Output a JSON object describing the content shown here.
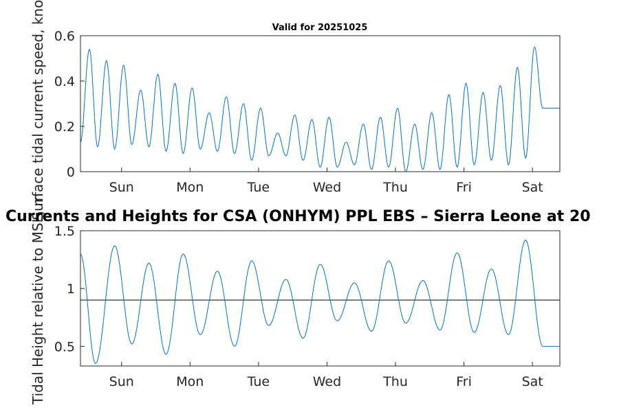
{
  "chart_data": [
    {
      "type": "line",
      "title": "Valid for 20251025",
      "ylabel": "Surface tidal current speed, knots",
      "xlabel": "",
      "x_range_days": [
        0,
        7
      ],
      "x_tick_labels": [
        "Sun",
        "Mon",
        "Tue",
        "Wed",
        "Thu",
        "Fri",
        "Sat"
      ],
      "y_ticks": [
        0,
        0.2,
        0.4,
        0.6
      ],
      "y_tick_labels": [
        "0",
        "0.2",
        "0.4",
        "0.6"
      ],
      "ylim": [
        0,
        0.6
      ],
      "grid": false,
      "series": [
        {
          "name": "current speed",
          "color": "#0072BD",
          "x": [
            0.0,
            0.13,
            0.25,
            0.38,
            0.5,
            0.63,
            0.75,
            0.88,
            1.0,
            1.13,
            1.25,
            1.38,
            1.5,
            1.63,
            1.75,
            1.88,
            2.0,
            2.13,
            2.25,
            2.38,
            2.5,
            2.63,
            2.75,
            2.88,
            3.0,
            3.13,
            3.25,
            3.38,
            3.5,
            3.63,
            3.75,
            3.88,
            4.0,
            4.13,
            4.25,
            4.38,
            4.5,
            4.63,
            4.75,
            4.88,
            5.0,
            5.13,
            5.25,
            5.38,
            5.5,
            5.63,
            5.75,
            5.88,
            6.0,
            6.13,
            6.25,
            6.38,
            6.5,
            6.63,
            6.75,
            6.88,
            7.0
          ],
          "values": [
            0.13,
            0.54,
            0.11,
            0.49,
            0.1,
            0.47,
            0.12,
            0.36,
            0.11,
            0.43,
            0.09,
            0.39,
            0.08,
            0.37,
            0.1,
            0.26,
            0.09,
            0.33,
            0.08,
            0.3,
            0.05,
            0.28,
            0.07,
            0.17,
            0.07,
            0.25,
            0.05,
            0.23,
            0.02,
            0.24,
            0.02,
            0.13,
            0.03,
            0.21,
            0.01,
            0.24,
            0.02,
            0.28,
            0.0,
            0.21,
            0.01,
            0.26,
            0.01,
            0.34,
            0.02,
            0.39,
            0.03,
            0.35,
            0.05,
            0.38,
            0.03,
            0.46,
            0.06,
            0.55,
            0.28,
            0.28,
            0.28
          ]
        }
      ]
    },
    {
      "type": "line",
      "title": "Currents and Heights for CSA (ONHYM) PPL EBS  – Sierra Leone at 20",
      "ylabel": "Tidal Height relative to MSL, m",
      "xlabel": "",
      "x_range_days": [
        0,
        7
      ],
      "x_tick_labels": [
        "Sun",
        "Mon",
        "Tue",
        "Wed",
        "Thu",
        "Fri",
        "Sat"
      ],
      "y_ticks": [
        0.5,
        1,
        1.5
      ],
      "y_tick_labels": [
        "0.5",
        "1",
        "1.5"
      ],
      "ylim": [
        0.33,
        1.5
      ],
      "reference_line": 0.9,
      "grid": false,
      "series": [
        {
          "name": "tidal height",
          "color": "#0072BD",
          "x": [
            0.0,
            0.22,
            0.5,
            0.75,
            1.0,
            1.25,
            1.5,
            1.75,
            2.0,
            2.25,
            2.5,
            2.75,
            3.0,
            3.25,
            3.5,
            3.75,
            4.0,
            4.25,
            4.5,
            4.75,
            5.0,
            5.25,
            5.5,
            5.75,
            6.0,
            6.25,
            6.5,
            6.75,
            7.0
          ],
          "values": [
            1.3,
            0.35,
            1.37,
            0.52,
            1.22,
            0.43,
            1.3,
            0.6,
            1.15,
            0.5,
            1.24,
            0.68,
            1.08,
            0.57,
            1.21,
            0.72,
            1.05,
            0.63,
            1.24,
            0.7,
            1.07,
            0.64,
            1.31,
            0.62,
            1.17,
            0.6,
            1.42,
            0.5,
            0.5
          ]
        }
      ]
    }
  ]
}
